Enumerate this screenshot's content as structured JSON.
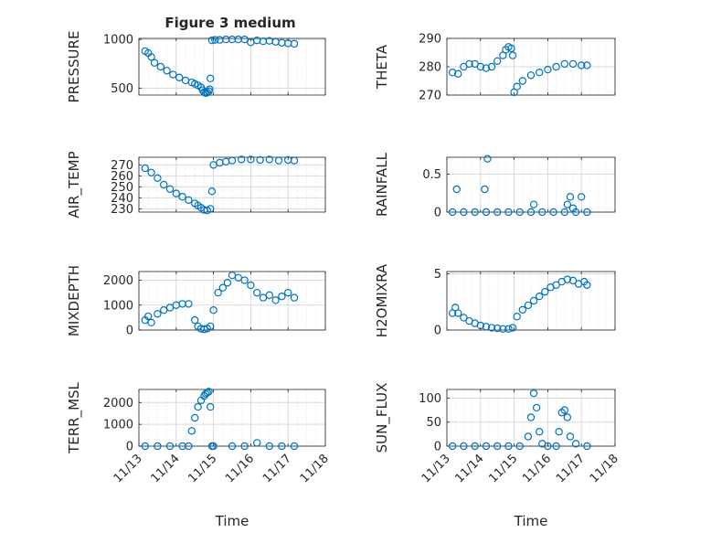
{
  "figure": {
    "title": "Figure 3 medium"
  },
  "style": {
    "marker_color": "#0072BD",
    "grid_color": "#d9d9d9",
    "axis_color": "#262626"
  },
  "chart_data": [
    {
      "id": "pressure",
      "type": "scatter",
      "ylabel": "PRESSURE",
      "xlabel": "",
      "title": "Figure 3 medium",
      "xlim": [
        "11/13",
        "11/18"
      ],
      "ylim": [
        430,
        1010
      ],
      "yticks": [
        500,
        1000
      ],
      "ytick_labels": [
        "500",
        "1000"
      ],
      "xticks": [
        "11/13",
        "11/14",
        "11/15",
        "11/16",
        "11/17",
        "11/18"
      ],
      "xtick_labels_shown": false,
      "x": [
        "11/13 04:00",
        "11/13 06:00",
        "11/13 08:00",
        "11/13 10:00",
        "11/13 14:00",
        "11/13 18:00",
        "11/13 22:00",
        "11/14 02:00",
        "11/14 06:00",
        "11/14 10:00",
        "11/14 12:00",
        "11/14 14:00",
        "11/14 16:00",
        "11/14 17:00",
        "11/14 18:00",
        "11/14 19:00",
        "11/14 20:00",
        "11/14 21:00",
        "11/14 21:30",
        "11/14 22:00",
        "11/14 23:00",
        "11/15 01:00",
        "11/15 04:00",
        "11/15 08:00",
        "11/15 12:00",
        "11/15 16:00",
        "11/15 20:00",
        "11/16 00:00",
        "11/16 04:00",
        "11/16 08:00",
        "11/16 12:00",
        "11/16 16:00",
        "11/16 20:00",
        "11/17 00:00",
        "11/17 04:00"
      ],
      "y": [
        880,
        860,
        820,
        760,
        720,
        680,
        640,
        610,
        580,
        560,
        545,
        530,
        510,
        480,
        460,
        450,
        455,
        470,
        490,
        600,
        990,
        995,
        995,
        1000,
        1000,
        1000,
        1000,
        970,
        990,
        980,
        985,
        975,
        965,
        960,
        955
      ]
    },
    {
      "id": "theta",
      "type": "scatter",
      "ylabel": "THETA",
      "xlabel": "",
      "xlim": [
        "11/13",
        "11/18"
      ],
      "ylim": [
        270,
        290
      ],
      "yticks": [
        270,
        280,
        290
      ],
      "ytick_labels": [
        "270",
        "280",
        "290"
      ],
      "xticks": [
        "11/13",
        "11/14",
        "11/15",
        "11/16",
        "11/17",
        "11/18"
      ],
      "xtick_labels_shown": false,
      "x": [
        "11/13 04:00",
        "11/13 08:00",
        "11/13 12:00",
        "11/13 16:00",
        "11/13 20:00",
        "11/14 00:00",
        "11/14 04:00",
        "11/14 08:00",
        "11/14 12:00",
        "11/14 16:00",
        "11/14 18:00",
        "11/14 20:00",
        "11/14 22:00",
        "11/14 23:00",
        "11/15 00:00",
        "11/15 02:00",
        "11/15 06:00",
        "11/15 12:00",
        "11/15 18:00",
        "11/16 00:00",
        "11/16 06:00",
        "11/16 12:00",
        "11/16 18:00",
        "11/17 00:00",
        "11/17 04:00"
      ],
      "y": [
        278,
        277.5,
        280,
        281,
        281,
        280,
        279.5,
        280,
        282,
        284,
        286,
        287,
        286.5,
        284,
        271,
        273,
        275,
        277,
        278,
        279,
        280,
        281,
        281,
        280.5,
        280.5
      ]
    },
    {
      "id": "air_temp",
      "type": "scatter",
      "ylabel": "AIR_TEMP",
      "xlabel": "",
      "xlim": [
        "11/13",
        "11/18"
      ],
      "ylim": [
        227,
        277
      ],
      "yticks": [
        230,
        240,
        250,
        260,
        270
      ],
      "ytick_labels": [
        "230",
        "240",
        "250",
        "260",
        "270"
      ],
      "xticks": [
        "11/13",
        "11/14",
        "11/15",
        "11/16",
        "11/17",
        "11/18"
      ],
      "xtick_labels_shown": false,
      "x": [
        "11/13 04:00",
        "11/13 08:00",
        "11/13 12:00",
        "11/13 16:00",
        "11/13 20:00",
        "11/14 00:00",
        "11/14 04:00",
        "11/14 08:00",
        "11/14 12:00",
        "11/14 14:00",
        "11/14 16:00",
        "11/14 18:00",
        "11/14 20:00",
        "11/14 22:00",
        "11/14 23:00",
        "11/15 00:00",
        "11/15 04:00",
        "11/15 08:00",
        "11/15 12:00",
        "11/15 18:00",
        "11/16 00:00",
        "11/16 06:00",
        "11/16 12:00",
        "11/16 18:00",
        "11/17 00:00",
        "11/17 04:00"
      ],
      "y": [
        267,
        263,
        258,
        252,
        248,
        244,
        241,
        238,
        235,
        233,
        231,
        229,
        228.5,
        230,
        246,
        270,
        272,
        273,
        274,
        275,
        275,
        274.5,
        275,
        274,
        274.5,
        274
      ]
    },
    {
      "id": "rainfall",
      "type": "scatter",
      "ylabel": "RAINFALL",
      "xlabel": "",
      "xlim": [
        "11/13",
        "11/18"
      ],
      "ylim": [
        0,
        0.72
      ],
      "yticks": [
        0,
        0.5
      ],
      "ytick_labels": [
        "0",
        "0.5"
      ],
      "xticks": [
        "11/13",
        "11/14",
        "11/15",
        "11/16",
        "11/17",
        "11/18"
      ],
      "xtick_labels_shown": false,
      "x": [
        "11/13 04:00",
        "11/13 12:00",
        "11/13 20:00",
        "11/14 04:00",
        "11/14 12:00",
        "11/14 20:00",
        "11/15 04:00",
        "11/15 12:00",
        "11/15 20:00",
        "11/16 04:00",
        "11/16 12:00",
        "11/16 20:00",
        "11/17 04:00",
        "11/13 07:00",
        "11/14 03:00",
        "11/14 05:00",
        "11/15 14:00",
        "11/16 14:00",
        "11/16 16:00",
        "11/16 18:00",
        "11/17 00:00"
      ],
      "y": [
        0,
        0,
        0,
        0,
        0,
        0,
        0,
        0,
        0,
        0,
        0,
        0,
        0,
        0.3,
        0.3,
        0.7,
        0.1,
        0.1,
        0.2,
        0.05,
        0.2
      ]
    },
    {
      "id": "mixdepth",
      "type": "scatter",
      "ylabel": "MIXDEPTH",
      "xlabel": "",
      "xlim": [
        "11/13",
        "11/18"
      ],
      "ylim": [
        0,
        2350
      ],
      "yticks": [
        0,
        1000,
        2000
      ],
      "ytick_labels": [
        "0",
        "1000",
        "2000"
      ],
      "xticks": [
        "11/13",
        "11/14",
        "11/15",
        "11/16",
        "11/17",
        "11/18"
      ],
      "xtick_labels_shown": false,
      "x": [
        "11/13 04:00",
        "11/13 06:00",
        "11/13 08:00",
        "11/13 12:00",
        "11/13 16:00",
        "11/13 20:00",
        "11/14 00:00",
        "11/14 04:00",
        "11/14 08:00",
        "11/14 12:00",
        "11/14 14:00",
        "11/14 16:00",
        "11/14 18:00",
        "11/14 20:00",
        "11/14 22:00",
        "11/15 00:00",
        "11/15 03:00",
        "11/15 06:00",
        "11/15 09:00",
        "11/15 12:00",
        "11/15 16:00",
        "11/15 20:00",
        "11/16 00:00",
        "11/16 04:00",
        "11/16 08:00",
        "11/16 12:00",
        "11/16 16:00",
        "11/16 20:00",
        "11/17 00:00",
        "11/17 04:00"
      ],
      "y": [
        400,
        550,
        300,
        650,
        800,
        900,
        1000,
        1050,
        1050,
        400,
        150,
        50,
        30,
        60,
        150,
        800,
        1500,
        1700,
        1900,
        2200,
        2100,
        2000,
        1800,
        1500,
        1300,
        1400,
        1200,
        1350,
        1500,
        1300
      ]
    },
    {
      "id": "h2omixra",
      "type": "scatter",
      "ylabel": "H2OMIXRA",
      "xlabel": "",
      "xlim": [
        "11/13",
        "11/18"
      ],
      "ylim": [
        0,
        5.2
      ],
      "yticks": [
        0,
        5
      ],
      "ytick_labels": [
        "0",
        "5"
      ],
      "xticks": [
        "11/13",
        "11/14",
        "11/15",
        "11/16",
        "11/17",
        "11/18"
      ],
      "xtick_labels_shown": false,
      "x": [
        "11/13 04:00",
        "11/13 06:00",
        "11/13 08:00",
        "11/13 12:00",
        "11/13 16:00",
        "11/13 20:00",
        "11/14 00:00",
        "11/14 04:00",
        "11/14 08:00",
        "11/14 12:00",
        "11/14 16:00",
        "11/14 20:00",
        "11/14 23:00",
        "11/15 02:00",
        "11/15 06:00",
        "11/15 10:00",
        "11/15 14:00",
        "11/15 18:00",
        "11/15 22:00",
        "11/16 02:00",
        "11/16 06:00",
        "11/16 10:00",
        "11/16 14:00",
        "11/16 18:00",
        "11/16 22:00",
        "11/17 02:00",
        "11/17 04:00"
      ],
      "y": [
        1.5,
        2,
        1.5,
        1.1,
        0.8,
        0.6,
        0.4,
        0.3,
        0.2,
        0.15,
        0.1,
        0.1,
        0.2,
        1.2,
        1.8,
        2.2,
        2.6,
        3,
        3.4,
        3.8,
        4,
        4.3,
        4.5,
        4.4,
        4.1,
        4.3,
        4
      ]
    },
    {
      "id": "terr_msl",
      "type": "scatter",
      "ylabel": "TERR_MSL",
      "xlabel": "Time",
      "xlim": [
        "11/13",
        "11/18"
      ],
      "ylim": [
        0,
        2600
      ],
      "yticks": [
        0,
        1000,
        2000
      ],
      "ytick_labels": [
        "0",
        "1000",
        "2000"
      ],
      "xticks": [
        "11/13",
        "11/14",
        "11/15",
        "11/16",
        "11/17",
        "11/18"
      ],
      "xtick_labels": [
        "11/13",
        "11/14",
        "11/15",
        "11/16",
        "11/17",
        "11/18"
      ],
      "x": [
        "11/13 04:00",
        "11/13 12:00",
        "11/13 20:00",
        "11/14 04:00",
        "11/14 08:00",
        "11/14 10:00",
        "11/14 12:00",
        "11/14 14:00",
        "11/14 16:00",
        "11/14 18:00",
        "11/14 19:00",
        "11/14 20:00",
        "11/14 21:00",
        "11/14 22:00",
        "11/14 23:00",
        "11/15 00:00",
        "11/15 12:00",
        "11/15 20:00",
        "11/16 04:00",
        "11/16 12:00",
        "11/16 20:00",
        "11/17 04:00"
      ],
      "y": [
        0,
        0,
        0,
        0,
        0,
        700,
        1300,
        1800,
        2100,
        2300,
        2400,
        2450,
        2500,
        1800,
        0,
        0,
        0,
        0,
        150,
        0,
        0,
        0
      ]
    },
    {
      "id": "sun_flux",
      "type": "scatter",
      "ylabel": "SUN_FLUX",
      "xlabel": "Time",
      "xlim": [
        "11/13",
        "11/18"
      ],
      "ylim": [
        0,
        118
      ],
      "yticks": [
        0,
        50,
        100
      ],
      "ytick_labels": [
        "0",
        "50",
        "100"
      ],
      "xticks": [
        "11/13",
        "11/14",
        "11/15",
        "11/16",
        "11/17",
        "11/18"
      ],
      "xtick_labels": [
        "11/13",
        "11/14",
        "11/15",
        "11/16",
        "11/17",
        "11/18"
      ],
      "x": [
        "11/13 04:00",
        "11/13 12:00",
        "11/13 20:00",
        "11/14 04:00",
        "11/14 12:00",
        "11/14 20:00",
        "11/15 04:00",
        "11/15 10:00",
        "11/15 12:00",
        "11/15 14:00",
        "11/15 16:00",
        "11/15 18:00",
        "11/15 20:00",
        "11/16 00:00",
        "11/16 06:00",
        "11/16 08:00",
        "11/16 10:00",
        "11/16 12:00",
        "11/16 14:00",
        "11/16 16:00",
        "11/16 20:00",
        "11/17 04:00"
      ],
      "y": [
        0,
        0,
        0,
        0,
        0,
        0,
        0,
        20,
        60,
        110,
        80,
        30,
        5,
        0,
        0,
        30,
        70,
        75,
        60,
        20,
        5,
        0
      ]
    }
  ]
}
